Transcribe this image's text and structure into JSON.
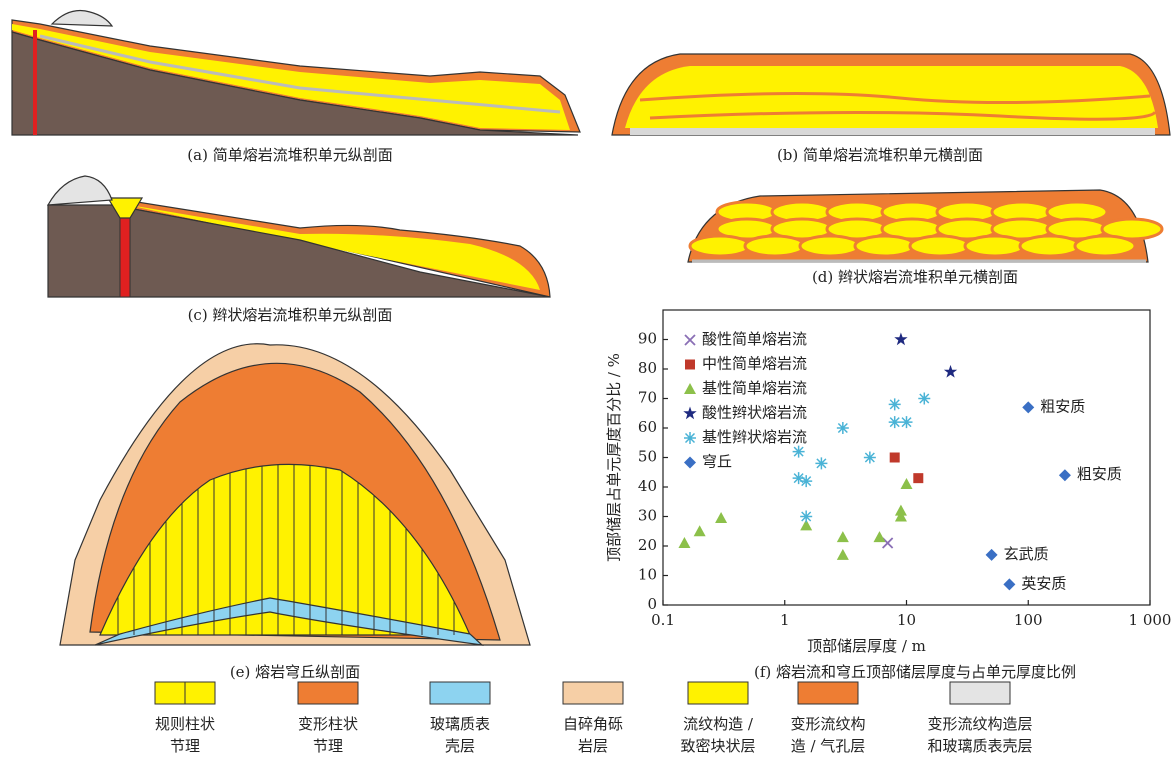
{
  "captions": [
    "(a) 简单熔岩流堆积单元纵剖面",
    "(b) 简单熔岩流堆积单元横剖面",
    "(c) 辫状熔岩流堆积单元纵剖面",
    "(d) 辫状熔岩流堆积单元横剖面",
    "(e) 熔岩穹丘纵剖面",
    "(f) 熔岩流和穹丘顶部储层厚度与占单元厚度比例"
  ],
  "legend_items": [
    {
      "lines": [
        "规则柱状",
        "节理"
      ],
      "color": "#fff200"
    },
    {
      "lines": [
        "变形柱状",
        "节理"
      ],
      "color": "#ee7d33"
    },
    {
      "lines": [
        "玻璃质表",
        "壳层"
      ],
      "color": "#8dd3f0"
    },
    {
      "lines": [
        "自碎角砾",
        "岩层"
      ],
      "color": "#f6cfa6"
    },
    {
      "lines": [
        "流纹构造 /",
        "致密块状层"
      ],
      "color": "#fff200"
    },
    {
      "lines": [
        "变形流纹构",
        "造 / 气孔层"
      ],
      "color": "#ee7d33"
    },
    {
      "lines": [
        "变形流纹构造层",
        "和玻璃质表壳层"
      ],
      "color": "#e4e4e4"
    }
  ],
  "chart_data": {
    "type": "scatter",
    "xscale": "log",
    "x_label": "顶部储层厚度 / m",
    "y_label": "顶部储层占单元厚度百分比 / %",
    "xlim": [
      0.1,
      1000
    ],
    "xticks": [
      0.1,
      1,
      10,
      100,
      {
        "value": 1000,
        "label": "1 000"
      }
    ],
    "ylim": [
      0,
      100
    ],
    "yticks": [
      0,
      10,
      20,
      30,
      40,
      50,
      60,
      70,
      80,
      90
    ],
    "grid": false,
    "legend": "top-left",
    "series": [
      {
        "name": "酸性简单熔岩流",
        "color": "#8a6fb5",
        "marker": "x",
        "x": [
          7
        ],
        "values": [
          21
        ]
      },
      {
        "name": "中性简单熔岩流",
        "color": "#c0392b",
        "marker": "square",
        "x": [
          8,
          12.5
        ],
        "values": [
          50,
          43
        ]
      },
      {
        "name": "基性简单熔岩流",
        "color": "#8cc04a",
        "marker": "triangle",
        "x": [
          0.15,
          0.2,
          0.3,
          1.5,
          3,
          3,
          6,
          9,
          9,
          10
        ],
        "values": [
          21,
          25,
          29.5,
          27,
          23,
          17,
          23,
          30,
          32,
          41
        ]
      },
      {
        "name": "酸性辫状熔岩流",
        "color": "#1f2a80",
        "marker": "star",
        "x": [
          9,
          23
        ],
        "values": [
          90,
          79
        ]
      },
      {
        "name": "基性辫状熔岩流",
        "color": "#4ab3d6",
        "marker": "asterisk",
        "x": [
          1.3,
          1.3,
          1.5,
          1.5,
          2,
          3,
          5,
          8,
          8,
          10,
          14
        ],
        "values": [
          52,
          43,
          42,
          30,
          48,
          60,
          50,
          68,
          62,
          62,
          70
        ]
      },
      {
        "name": "穹丘",
        "color": "#3a6fc4",
        "marker": "diamond",
        "x": [
          100,
          200,
          50,
          70
        ],
        "values": [
          67,
          44,
          17,
          7
        ],
        "point_labels": [
          "粗安质",
          "粗安质",
          "玄武质",
          "英安质"
        ]
      }
    ]
  }
}
